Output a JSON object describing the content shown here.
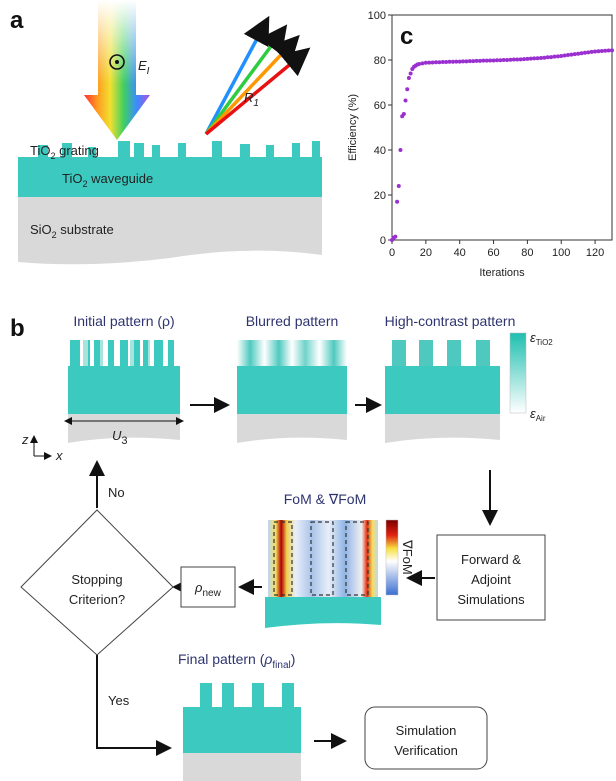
{
  "panel_a": {
    "label": "a",
    "incident": {
      "symbol": "E",
      "sub": "I"
    },
    "reflected": {
      "symbol": "R",
      "sub": "1"
    },
    "grating": {
      "pre": "TiO",
      "sub": "2",
      "post": " grating"
    },
    "waveguide": {
      "pre": "TiO",
      "sub": "2",
      "post": " waveguide"
    },
    "substrate": {
      "pre": "SiO",
      "sub": "2",
      "post": " substrate"
    }
  },
  "panel_b": {
    "label": "b",
    "initial": "Initial pattern (ρ)",
    "blurred": "Blurred pattern",
    "high_contrast": "High-contrast pattern",
    "eps_max": {
      "symbol": "ε",
      "sub": "TiO2"
    },
    "eps_min": {
      "symbol": "ε",
      "sub": "Air"
    },
    "period": {
      "symbol": "U",
      "sub": "3"
    },
    "axis_z": "z",
    "axis_x": "x",
    "fom": "FoM & ∇FoM",
    "fom_bar": "∇FoM",
    "simulations": [
      "Forward &",
      "Adjoint",
      "Simulations"
    ],
    "criterion": [
      "Stopping",
      "Criterion?"
    ],
    "rho_new": {
      "symbol": "ρ",
      "sub": "new"
    },
    "no": "No",
    "yes": "Yes",
    "final": {
      "pre": "Final pattern (",
      "symbol": "ρ",
      "sub": "final",
      "post": ")"
    },
    "verification": [
      "Simulation",
      "Verification"
    ]
  },
  "chart_data": {
    "type": "scatter",
    "panel_label": "c",
    "xlabel": "Iterations",
    "ylabel": "Efficiency (%)",
    "color": "#9b30d0",
    "xlim": [
      0,
      130
    ],
    "ylim": [
      0,
      100
    ],
    "xticks": [
      0,
      20,
      40,
      60,
      80,
      100,
      120
    ],
    "yticks": [
      0,
      20,
      40,
      60,
      80,
      100
    ],
    "x": [
      0,
      1,
      2,
      3,
      4,
      5,
      6,
      7,
      8,
      9,
      10,
      11,
      12,
      13,
      14,
      15,
      16,
      18,
      20,
      22,
      24,
      26,
      28,
      30,
      32,
      34,
      36,
      38,
      40,
      42,
      44,
      46,
      48,
      50,
      52,
      54,
      56,
      58,
      60,
      62,
      64,
      66,
      68,
      70,
      72,
      74,
      76,
      78,
      80,
      82,
      84,
      86,
      88,
      90,
      92,
      94,
      96,
      98,
      100,
      102,
      104,
      106,
      108,
      110,
      112,
      114,
      116,
      118,
      120,
      122,
      124,
      126,
      128,
      130
    ],
    "values": [
      0,
      1,
      1.5,
      17,
      24,
      40,
      55,
      56,
      62,
      67,
      72,
      74,
      76,
      77,
      77.5,
      78,
      78.2,
      78.5,
      78.8,
      78.85,
      78.9,
      79,
      79,
      79.1,
      79.1,
      79.2,
      79.2,
      79.3,
      79.3,
      79.4,
      79.4,
      79.5,
      79.5,
      79.6,
      79.6,
      79.7,
      79.7,
      79.8,
      79.8,
      79.9,
      79.9,
      80,
      80,
      80.1,
      80.2,
      80.2,
      80.3,
      80.4,
      80.5,
      80.6,
      80.7,
      80.8,
      80.9,
      81,
      81.2,
      81.3,
      81.5,
      81.6,
      81.8,
      82,
      82.2,
      82.4,
      82.6,
      82.8,
      83,
      83.2,
      83.4,
      83.6,
      83.8,
      83.9,
      84,
      84.1,
      84.2,
      84.3
    ]
  }
}
